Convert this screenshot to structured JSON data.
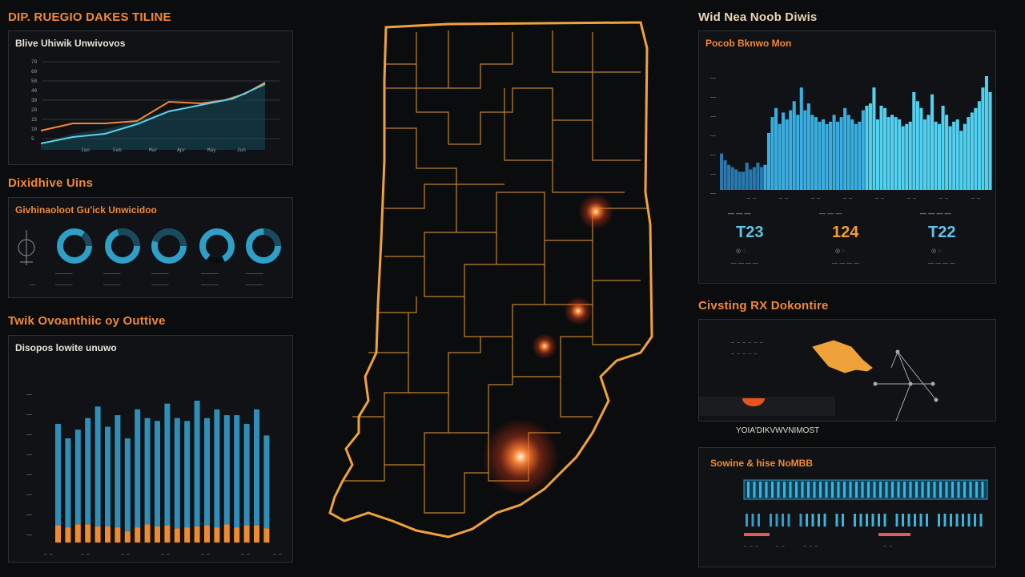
{
  "header": {
    "left_title": "DIP. RUEGIO DAKES TILINE",
    "right_title": "Wid Nea Noob Diwis"
  },
  "panels": {
    "trend": {
      "title": "Blive Uhiwik Unwivovos"
    },
    "distribution": {
      "section_title": "Dixidhive Uins",
      "title": "Givhinaoloot Gu'ick Unwicidoo",
      "donut_values": [
        0.85,
        0.7,
        0.55,
        0.78,
        0.68
      ]
    },
    "bars": {
      "section_title": "Twik Ovoanthiic oy Outtive",
      "title": "Disopos lowite unuwo"
    },
    "stats": {
      "title": "Pocob Bknwo Mon",
      "items": [
        {
          "value": "T23",
          "color": "#5fc4e6"
        },
        {
          "value": "124",
          "color": "#f39a3b"
        },
        {
          "value": "T22",
          "color": "#5fc4e6"
        }
      ]
    },
    "region": {
      "section_title": "Civsting RX Dokontire",
      "caption": "YOIA'DIKVWVNIMOST"
    },
    "strip": {
      "title": "Sowine & hise NoMBB"
    }
  },
  "map": {
    "state_outline_color": "#f0a23a",
    "county_line_color": "#c98a2e",
    "hotspots": [
      {
        "name": "north-east",
        "intensity": 0.7
      },
      {
        "name": "central",
        "intensity": 0.6
      },
      {
        "name": "south-central",
        "intensity": 0.55
      },
      {
        "name": "south",
        "intensity": 1.0
      }
    ]
  },
  "colors": {
    "accent_orange": "#f0883a",
    "accent_blue": "#2f9fc8",
    "cyan": "#39c0e8"
  }
}
